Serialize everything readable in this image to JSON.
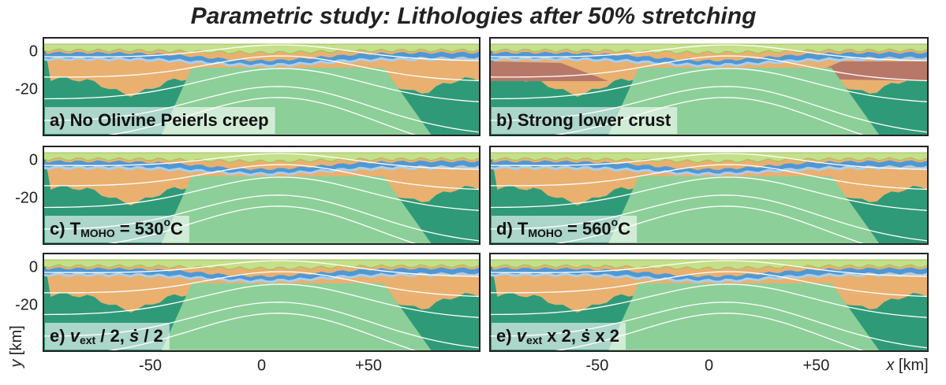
{
  "title": "Parametric study: Lithologies after 50% stretching",
  "y_label": {
    "italic": "y",
    "rest": " [km]"
  },
  "x_label": {
    "italic": "x",
    "rest": " [km]"
  },
  "y_ticks": [
    "0",
    "-20"
  ],
  "x_ticks": [
    "-50",
    "0",
    "+50"
  ],
  "panels": [
    {
      "parts": [
        {
          "text": "a) No Olivine Peierls creep"
        }
      ]
    },
    {
      "parts": [
        {
          "text": "b) Strong lower crust"
        }
      ]
    },
    {
      "parts": [
        {
          "text": "c) T"
        },
        {
          "text": "MOHO",
          "script": "sub"
        },
        {
          "text": " = 530"
        },
        {
          "text": "o",
          "script": "sup"
        },
        {
          "text": "C"
        }
      ]
    },
    {
      "parts": [
        {
          "text": "d) T"
        },
        {
          "text": "MOHO",
          "script": "sub"
        },
        {
          "text": " = 560"
        },
        {
          "text": "o",
          "script": "sup"
        },
        {
          "text": "C"
        }
      ]
    },
    {
      "parts": [
        {
          "text": "e) "
        },
        {
          "text": "v",
          "script": "italic"
        },
        {
          "text": "ext",
          "script": "sub"
        },
        {
          "text": " / 2, "
        },
        {
          "text": "ṡ",
          "script": "italic"
        },
        {
          "text": " / 2"
        }
      ]
    },
    {
      "parts": [
        {
          "text": "e) "
        },
        {
          "text": "v",
          "script": "italic"
        },
        {
          "text": "ext",
          "script": "sub"
        },
        {
          "text": " x 2, "
        },
        {
          "text": "ṡ",
          "script": "italic"
        },
        {
          "text": " x 2"
        }
      ]
    }
  ]
}
